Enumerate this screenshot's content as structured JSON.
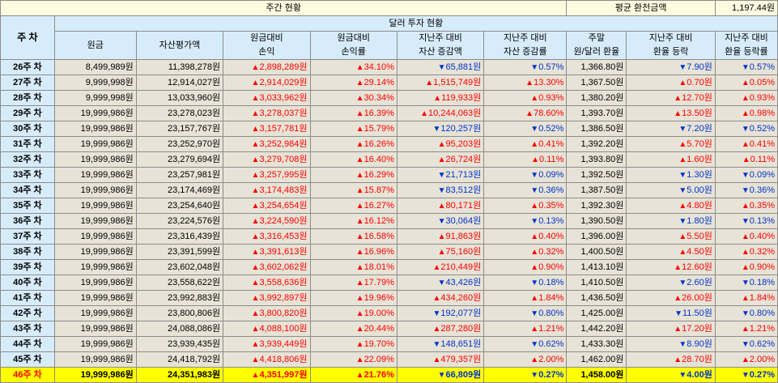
{
  "header": {
    "title": "주간 현황",
    "avg_label": "평균 환전금액",
    "avg_value": "1,197.44원",
    "week_col": "주 차",
    "sub_title": "달러 투자 현황",
    "columns": [
      [
        "원금",
        ""
      ],
      [
        "자산평가액",
        ""
      ],
      [
        "원금대비",
        "손익"
      ],
      [
        "원금대비",
        "손익률"
      ],
      [
        "지난주 대비",
        "자산 증감액"
      ],
      [
        "지난주 대비",
        "자산 증감률"
      ],
      [
        "주말",
        "원/달러 환율"
      ],
      [
        "지난주 대비",
        "환율 등락"
      ],
      [
        "지난주 대비",
        "환율 등락률"
      ]
    ]
  },
  "rows": [
    {
      "week": "26주 차",
      "principal": "8,499,989원",
      "asset": "11,398,278원",
      "pl": [
        "up",
        "2,898,289원"
      ],
      "plr": [
        "up",
        "34.10%"
      ],
      "chg": [
        "down",
        "65,881원"
      ],
      "chgr": [
        "down",
        "0.57%"
      ],
      "rate": "1,366.80원",
      "fx": [
        "down",
        "7.90원"
      ],
      "fxr": [
        "down",
        "0.57%"
      ]
    },
    {
      "week": "27주 차",
      "principal": "9,999,998원",
      "asset": "12,914,027원",
      "pl": [
        "up",
        "2,914,029원"
      ],
      "plr": [
        "up",
        "29.14%"
      ],
      "chg": [
        "up",
        "1,515,749원"
      ],
      "chgr": [
        "up",
        "13.30%"
      ],
      "rate": "1,367.50원",
      "fx": [
        "up",
        "0.70원"
      ],
      "fxr": [
        "up",
        "0.05%"
      ]
    },
    {
      "week": "28주 차",
      "principal": "9,999,998원",
      "asset": "13,033,960원",
      "pl": [
        "up",
        "3,033,962원"
      ],
      "plr": [
        "up",
        "30.34%"
      ],
      "chg": [
        "up",
        "119,933원"
      ],
      "chgr": [
        "up",
        "0.93%"
      ],
      "rate": "1,380.20원",
      "fx": [
        "up",
        "12.70원"
      ],
      "fxr": [
        "up",
        "0.93%"
      ]
    },
    {
      "week": "29주 차",
      "principal": "19,999,986원",
      "asset": "23,278,023원",
      "pl": [
        "up",
        "3,278,037원"
      ],
      "plr": [
        "up",
        "16.39%"
      ],
      "chg": [
        "up",
        "10,244,063원"
      ],
      "chgr": [
        "up",
        "78.60%"
      ],
      "rate": "1,393.70원",
      "fx": [
        "up",
        "13.50원"
      ],
      "fxr": [
        "up",
        "0.98%"
      ]
    },
    {
      "week": "30주 차",
      "principal": "19,999,986원",
      "asset": "23,157,767원",
      "pl": [
        "up",
        "3,157,781원"
      ],
      "plr": [
        "up",
        "15.79%"
      ],
      "chg": [
        "down",
        "120,257원"
      ],
      "chgr": [
        "down",
        "0.52%"
      ],
      "rate": "1,386.50원",
      "fx": [
        "down",
        "7.20원"
      ],
      "fxr": [
        "down",
        "0.52%"
      ]
    },
    {
      "week": "31주 차",
      "principal": "19,999,986원",
      "asset": "23,252,970원",
      "pl": [
        "up",
        "3,252,984원"
      ],
      "plr": [
        "up",
        "16.26%"
      ],
      "chg": [
        "up",
        "95,203원"
      ],
      "chgr": [
        "up",
        "0.41%"
      ],
      "rate": "1,392.20원",
      "fx": [
        "up",
        "5.70원"
      ],
      "fxr": [
        "up",
        "0.41%"
      ]
    },
    {
      "week": "32주 차",
      "principal": "19,999,986원",
      "asset": "23,279,694원",
      "pl": [
        "up",
        "3,279,708원"
      ],
      "plr": [
        "up",
        "16.40%"
      ],
      "chg": [
        "up",
        "26,724원"
      ],
      "chgr": [
        "up",
        "0.11%"
      ],
      "rate": "1,393.80원",
      "fx": [
        "up",
        "1.60원"
      ],
      "fxr": [
        "up",
        "0.11%"
      ]
    },
    {
      "week": "33주 차",
      "principal": "19,999,986원",
      "asset": "23,257,981원",
      "pl": [
        "up",
        "3,257,995원"
      ],
      "plr": [
        "up",
        "16.29%"
      ],
      "chg": [
        "down",
        "21,713원"
      ],
      "chgr": [
        "down",
        "0.09%"
      ],
      "rate": "1,392.50원",
      "fx": [
        "down",
        "1.30원"
      ],
      "fxr": [
        "down",
        "0.09%"
      ]
    },
    {
      "week": "34주 차",
      "principal": "19,999,986원",
      "asset": "23,174,469원",
      "pl": [
        "up",
        "3,174,483원"
      ],
      "plr": [
        "up",
        "15.87%"
      ],
      "chg": [
        "down",
        "83,512원"
      ],
      "chgr": [
        "down",
        "0.36%"
      ],
      "rate": "1,387.50원",
      "fx": [
        "down",
        "5.00원"
      ],
      "fxr": [
        "down",
        "0.36%"
      ]
    },
    {
      "week": "35주 차",
      "principal": "19,999,986원",
      "asset": "23,254,640원",
      "pl": [
        "up",
        "3,254,654원"
      ],
      "plr": [
        "up",
        "16.27%"
      ],
      "chg": [
        "up",
        "80,171원"
      ],
      "chgr": [
        "up",
        "0.35%"
      ],
      "rate": "1,392.30원",
      "fx": [
        "up",
        "4.80원"
      ],
      "fxr": [
        "up",
        "0.35%"
      ]
    },
    {
      "week": "36주 차",
      "principal": "19,999,986원",
      "asset": "23,224,576원",
      "pl": [
        "up",
        "3,224,590원"
      ],
      "plr": [
        "up",
        "16.12%"
      ],
      "chg": [
        "down",
        "30,064원"
      ],
      "chgr": [
        "down",
        "0.13%"
      ],
      "rate": "1,390.50원",
      "fx": [
        "down",
        "1.80원"
      ],
      "fxr": [
        "down",
        "0.13%"
      ]
    },
    {
      "week": "37주 차",
      "principal": "19,999,986원",
      "asset": "23,316,439원",
      "pl": [
        "up",
        "3,316,453원"
      ],
      "plr": [
        "up",
        "16.58%"
      ],
      "chg": [
        "up",
        "91,863원"
      ],
      "chgr": [
        "up",
        "0.40%"
      ],
      "rate": "1,396.00원",
      "fx": [
        "up",
        "5.50원"
      ],
      "fxr": [
        "up",
        "0.40%"
      ]
    },
    {
      "week": "38주 차",
      "principal": "19,999,986원",
      "asset": "23,391,599원",
      "pl": [
        "up",
        "3,391,613원"
      ],
      "plr": [
        "up",
        "16.96%"
      ],
      "chg": [
        "up",
        "75,160원"
      ],
      "chgr": [
        "up",
        "0.32%"
      ],
      "rate": "1,400.50원",
      "fx": [
        "up",
        "4.50원"
      ],
      "fxr": [
        "up",
        "0.32%"
      ]
    },
    {
      "week": "39주 차",
      "principal": "19,999,986원",
      "asset": "23,602,048원",
      "pl": [
        "up",
        "3,602,062원"
      ],
      "plr": [
        "up",
        "18.01%"
      ],
      "chg": [
        "up",
        "210,449원"
      ],
      "chgr": [
        "up",
        "0.90%"
      ],
      "rate": "1,413.10원",
      "fx": [
        "up",
        "12.60원"
      ],
      "fxr": [
        "up",
        "0.90%"
      ]
    },
    {
      "week": "40주 차",
      "principal": "19,999,986원",
      "asset": "23,558,622원",
      "pl": [
        "up",
        "3,558,636원"
      ],
      "plr": [
        "up",
        "17.79%"
      ],
      "chg": [
        "down",
        "43,426원"
      ],
      "chgr": [
        "down",
        "0.18%"
      ],
      "rate": "1,410.50원",
      "fx": [
        "down",
        "2.60원"
      ],
      "fxr": [
        "down",
        "0.18%"
      ]
    },
    {
      "week": "41주 차",
      "principal": "19,999,986원",
      "asset": "23,992,883원",
      "pl": [
        "up",
        "3,992,897원"
      ],
      "plr": [
        "up",
        "19.96%"
      ],
      "chg": [
        "up",
        "434,260원"
      ],
      "chgr": [
        "up",
        "1.84%"
      ],
      "rate": "1,436.50원",
      "fx": [
        "up",
        "26.00원"
      ],
      "fxr": [
        "up",
        "1.84%"
      ]
    },
    {
      "week": "42주 차",
      "principal": "19,999,986원",
      "asset": "23,800,806원",
      "pl": [
        "up",
        "3,800,820원"
      ],
      "plr": [
        "up",
        "19.00%"
      ],
      "chg": [
        "down",
        "192,077원"
      ],
      "chgr": [
        "down",
        "0.80%"
      ],
      "rate": "1,425.00원",
      "fx": [
        "down",
        "11.50원"
      ],
      "fxr": [
        "down",
        "0.80%"
      ]
    },
    {
      "week": "43주 차",
      "principal": "19,999,986원",
      "asset": "24,088,086원",
      "pl": [
        "up",
        "4,088,100원"
      ],
      "plr": [
        "up",
        "20.44%"
      ],
      "chg": [
        "up",
        "287,280원"
      ],
      "chgr": [
        "up",
        "1.21%"
      ],
      "rate": "1,442.20원",
      "fx": [
        "up",
        "17.20원"
      ],
      "fxr": [
        "up",
        "1.21%"
      ]
    },
    {
      "week": "44주 차",
      "principal": "19,999,986원",
      "asset": "23,939,435원",
      "pl": [
        "up",
        "3,939,449원"
      ],
      "plr": [
        "up",
        "19.70%"
      ],
      "chg": [
        "down",
        "148,651원"
      ],
      "chgr": [
        "down",
        "0.62%"
      ],
      "rate": "1,433.30원",
      "fx": [
        "down",
        "8.90원"
      ],
      "fxr": [
        "down",
        "0.62%"
      ]
    },
    {
      "week": "45주 차",
      "principal": "19,999,986원",
      "asset": "24,418,792원",
      "pl": [
        "up",
        "4,418,806원"
      ],
      "plr": [
        "up",
        "22.09%"
      ],
      "chg": [
        "up",
        "479,357원"
      ],
      "chgr": [
        "up",
        "2.00%"
      ],
      "rate": "1,462.00원",
      "fx": [
        "up",
        "28.70원"
      ],
      "fxr": [
        "up",
        "2.00%"
      ]
    },
    {
      "week": "46주 차",
      "principal": "19,999,986원",
      "asset": "24,351,983원",
      "pl": [
        "up",
        "4,351,997원"
      ],
      "plr": [
        "up",
        "21.76%"
      ],
      "chg": [
        "down",
        "66,809원"
      ],
      "chgr": [
        "down",
        "0.27%"
      ],
      "rate": "1,458.00원",
      "fx": [
        "down",
        "4.00원"
      ],
      "fxr": [
        "down",
        "0.27%"
      ]
    }
  ],
  "symbols": {
    "up": "▲",
    "down": "▼"
  },
  "colors": {
    "up": "#ff0000",
    "down": "#0033cc",
    "header_bg": "#d7ecfb",
    "cell_bg": "#e7e3d6",
    "highlight_row": "#ffff00"
  }
}
